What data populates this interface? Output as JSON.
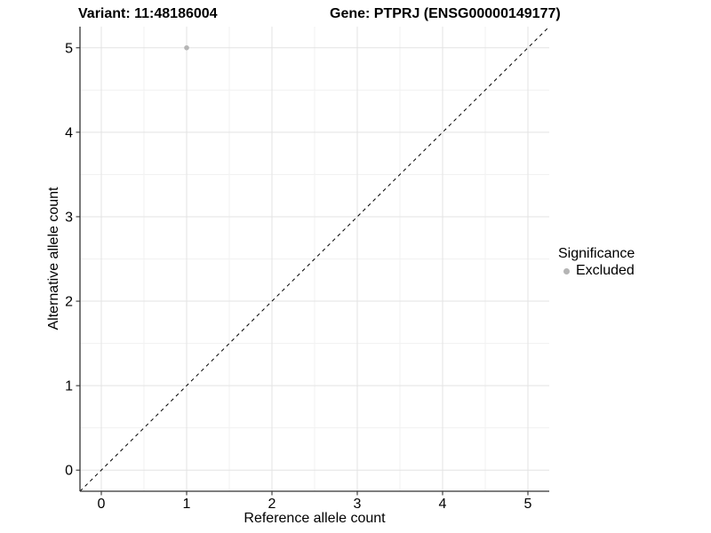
{
  "window": {
    "background": "#ffffff"
  },
  "chart_data": {
    "type": "scatter",
    "titles": {
      "left": "Variant: 11:48186004",
      "right": "Gene: PTPRJ (ENSG00000149177)"
    },
    "xlabel": "Reference allele count",
    "ylabel": "Alternative allele count",
    "xlim": [
      -0.25,
      5.25
    ],
    "ylim": [
      -0.25,
      5.25
    ],
    "x_ticks": [
      0,
      1,
      2,
      3,
      4,
      5
    ],
    "y_ticks": [
      0,
      1,
      2,
      3,
      4,
      5
    ],
    "grid": {
      "major": true,
      "minor": true
    },
    "points": [
      {
        "x": 1,
        "y": 5,
        "series": "Excluded"
      }
    ],
    "reference_line": {
      "type": "identity",
      "slope": 1,
      "intercept": 0,
      "style": "dashed"
    },
    "legend": {
      "title": "Significance",
      "position": "right",
      "entries": [
        {
          "label": "Excluded",
          "color": "#b5b5b5"
        }
      ]
    },
    "colors": {
      "point": "#b5b5b5",
      "grid_major": "#e3e3e3",
      "grid_minor": "#f1f1f1",
      "axis_line": "#333333",
      "tick": "#333333",
      "text": "#000000",
      "reference_line": "#000000"
    }
  }
}
